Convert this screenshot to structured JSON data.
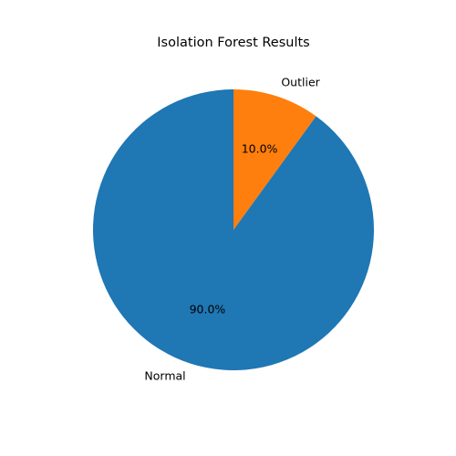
{
  "chart_data": {
    "type": "pie",
    "title": "Isolation Forest Results",
    "categories": [
      "Normal",
      "Outlier"
    ],
    "values": [
      90.0,
      10.0
    ],
    "percent_labels": [
      "90.0%",
      "10.0%"
    ],
    "colors": [
      "#1f77b4",
      "#ff7f0e"
    ],
    "start_angle_deg": 90,
    "direction": "counterclockwise",
    "legend": "none"
  }
}
